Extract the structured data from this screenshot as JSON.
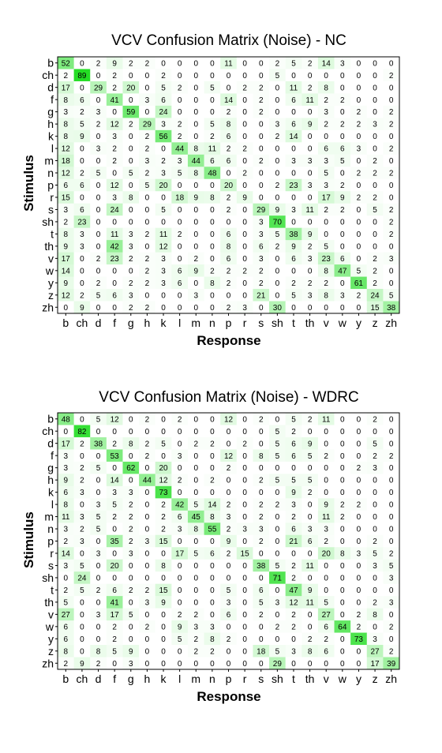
{
  "chart_data": [
    {
      "type": "heatmap",
      "title": "VCV Confusion Matrix (Noise) - NC",
      "xlabel": "Response",
      "ylabel": "Stimulus",
      "rows": [
        "b",
        "ch",
        "d",
        "f",
        "g",
        "h",
        "k",
        "l",
        "m",
        "n",
        "p",
        "r",
        "s",
        "sh",
        "t",
        "th",
        "v",
        "w",
        "y",
        "z",
        "zh"
      ],
      "columns": [
        "b",
        "ch",
        "d",
        "f",
        "g",
        "h",
        "k",
        "l",
        "m",
        "n",
        "p",
        "r",
        "s",
        "sh",
        "t",
        "th",
        "v",
        "w",
        "y",
        "z",
        "zh"
      ],
      "values": [
        [
          52,
          0,
          2,
          9,
          2,
          2,
          0,
          0,
          0,
          0,
          11,
          0,
          0,
          2,
          5,
          2,
          14,
          3,
          0,
          0,
          0
        ],
        [
          2,
          89,
          0,
          2,
          0,
          0,
          2,
          0,
          0,
          0,
          0,
          0,
          0,
          5,
          0,
          0,
          0,
          0,
          0,
          0,
          2
        ],
        [
          17,
          0,
          29,
          2,
          20,
          0,
          5,
          2,
          0,
          5,
          0,
          2,
          2,
          0,
          11,
          2,
          8,
          0,
          0,
          0,
          0
        ],
        [
          8,
          6,
          0,
          41,
          0,
          3,
          6,
          0,
          0,
          0,
          14,
          0,
          2,
          0,
          6,
          11,
          2,
          2,
          0,
          0,
          0
        ],
        [
          3,
          2,
          3,
          0,
          59,
          0,
          24,
          0,
          0,
          0,
          2,
          0,
          2,
          0,
          0,
          0,
          3,
          0,
          2,
          0,
          2
        ],
        [
          8,
          5,
          2,
          12,
          2,
          29,
          3,
          2,
          0,
          5,
          8,
          0,
          0,
          3,
          6,
          9,
          2,
          2,
          2,
          3,
          2
        ],
        [
          8,
          9,
          0,
          3,
          0,
          2,
          56,
          2,
          0,
          2,
          6,
          0,
          0,
          2,
          14,
          0,
          0,
          0,
          0,
          0,
          0
        ],
        [
          12,
          0,
          3,
          2,
          0,
          2,
          0,
          44,
          8,
          11,
          2,
          2,
          0,
          0,
          0,
          0,
          6,
          6,
          3,
          0,
          2
        ],
        [
          18,
          0,
          0,
          2,
          0,
          3,
          2,
          3,
          44,
          6,
          6,
          0,
          2,
          0,
          3,
          3,
          3,
          5,
          0,
          2,
          0
        ],
        [
          12,
          2,
          5,
          0,
          5,
          2,
          3,
          5,
          8,
          48,
          0,
          2,
          0,
          0,
          0,
          0,
          5,
          0,
          2,
          2,
          2
        ],
        [
          6,
          6,
          0,
          12,
          0,
          5,
          20,
          0,
          0,
          0,
          20,
          0,
          0,
          2,
          23,
          3,
          3,
          2,
          0,
          0,
          0
        ],
        [
          15,
          0,
          0,
          3,
          8,
          0,
          0,
          18,
          9,
          8,
          2,
          9,
          0,
          0,
          0,
          0,
          17,
          9,
          2,
          2,
          0
        ],
        [
          3,
          6,
          0,
          24,
          0,
          0,
          5,
          0,
          0,
          0,
          2,
          0,
          29,
          9,
          3,
          11,
          2,
          2,
          0,
          5,
          2
        ],
        [
          2,
          23,
          0,
          0,
          0,
          0,
          0,
          0,
          0,
          0,
          0,
          0,
          3,
          70,
          0,
          0,
          0,
          0,
          0,
          0,
          2
        ],
        [
          8,
          3,
          0,
          11,
          3,
          2,
          11,
          2,
          0,
          0,
          6,
          0,
          3,
          5,
          38,
          9,
          0,
          0,
          0,
          0,
          2
        ],
        [
          9,
          3,
          0,
          42,
          3,
          0,
          12,
          0,
          0,
          0,
          8,
          0,
          6,
          2,
          9,
          2,
          5,
          0,
          0,
          0,
          0
        ],
        [
          17,
          0,
          2,
          23,
          2,
          2,
          3,
          0,
          2,
          0,
          6,
          0,
          3,
          0,
          6,
          3,
          23,
          6,
          0,
          2,
          3
        ],
        [
          14,
          0,
          0,
          0,
          0,
          2,
          3,
          6,
          9,
          2,
          2,
          2,
          2,
          0,
          0,
          0,
          8,
          47,
          5,
          2,
          0
        ],
        [
          9,
          0,
          2,
          0,
          2,
          2,
          3,
          6,
          0,
          8,
          2,
          0,
          2,
          0,
          2,
          2,
          2,
          0,
          61,
          2,
          0
        ],
        [
          12,
          2,
          5,
          6,
          3,
          0,
          0,
          0,
          3,
          0,
          0,
          0,
          21,
          0,
          5,
          3,
          8,
          3,
          2,
          24,
          5
        ],
        [
          0,
          9,
          0,
          0,
          2,
          2,
          0,
          0,
          0,
          0,
          2,
          3,
          0,
          30,
          0,
          0,
          0,
          0,
          0,
          15,
          38
        ]
      ]
    },
    {
      "type": "heatmap",
      "title": "VCV Confusion Matrix (Noise) - WDRC",
      "xlabel": "Response",
      "ylabel": "Stimulus",
      "rows": [
        "b",
        "ch",
        "d",
        "f",
        "g",
        "h",
        "k",
        "l",
        "m",
        "n",
        "p",
        "r",
        "s",
        "sh",
        "t",
        "th",
        "v",
        "w",
        "y",
        "z",
        "zh"
      ],
      "columns": [
        "b",
        "ch",
        "d",
        "f",
        "g",
        "h",
        "k",
        "l",
        "m",
        "n",
        "p",
        "r",
        "s",
        "sh",
        "t",
        "th",
        "v",
        "w",
        "y",
        "z",
        "zh"
      ],
      "values": [
        [
          48,
          0,
          5,
          12,
          0,
          2,
          0,
          2,
          0,
          0,
          12,
          0,
          2,
          0,
          5,
          2,
          11,
          0,
          0,
          2,
          0
        ],
        [
          0,
          82,
          0,
          0,
          0,
          0,
          0,
          0,
          0,
          0,
          0,
          0,
          0,
          5,
          2,
          0,
          0,
          0,
          0,
          0,
          0
        ],
        [
          17,
          2,
          38,
          2,
          8,
          2,
          5,
          0,
          2,
          2,
          0,
          2,
          0,
          5,
          6,
          9,
          0,
          0,
          0,
          5,
          0
        ],
        [
          3,
          0,
          0,
          53,
          0,
          2,
          0,
          3,
          0,
          0,
          12,
          0,
          8,
          5,
          6,
          5,
          2,
          0,
          0,
          2,
          2
        ],
        [
          3,
          2,
          5,
          0,
          62,
          0,
          20,
          0,
          0,
          0,
          2,
          0,
          0,
          0,
          0,
          0,
          0,
          0,
          2,
          3,
          0
        ],
        [
          9,
          2,
          0,
          14,
          0,
          44,
          12,
          2,
          0,
          2,
          0,
          0,
          2,
          5,
          5,
          5,
          0,
          0,
          0,
          0,
          0
        ],
        [
          6,
          3,
          0,
          3,
          3,
          0,
          73,
          0,
          0,
          0,
          0,
          0,
          0,
          0,
          9,
          2,
          0,
          0,
          0,
          0,
          0
        ],
        [
          8,
          0,
          3,
          5,
          2,
          0,
          2,
          42,
          5,
          14,
          2,
          0,
          2,
          2,
          3,
          0,
          9,
          2,
          2,
          0,
          0
        ],
        [
          11,
          3,
          5,
          2,
          2,
          0,
          2,
          6,
          45,
          8,
          3,
          0,
          2,
          0,
          2,
          0,
          11,
          2,
          0,
          0,
          0
        ],
        [
          3,
          2,
          5,
          0,
          2,
          0,
          2,
          3,
          8,
          55,
          2,
          3,
          3,
          0,
          6,
          3,
          3,
          0,
          0,
          0,
          0
        ],
        [
          2,
          3,
          0,
          35,
          2,
          3,
          15,
          0,
          0,
          0,
          9,
          0,
          2,
          0,
          21,
          6,
          2,
          0,
          0,
          2,
          0
        ],
        [
          14,
          0,
          3,
          0,
          3,
          0,
          0,
          17,
          5,
          6,
          2,
          15,
          0,
          0,
          0,
          0,
          20,
          8,
          3,
          5,
          2
        ],
        [
          3,
          5,
          0,
          20,
          0,
          0,
          8,
          0,
          0,
          0,
          0,
          0,
          38,
          5,
          2,
          11,
          0,
          0,
          0,
          3,
          5
        ],
        [
          0,
          24,
          0,
          0,
          0,
          0,
          0,
          0,
          0,
          0,
          0,
          0,
          0,
          71,
          2,
          0,
          0,
          0,
          0,
          0,
          3
        ],
        [
          2,
          5,
          2,
          6,
          2,
          2,
          15,
          0,
          0,
          0,
          5,
          0,
          6,
          0,
          47,
          9,
          0,
          0,
          0,
          0,
          0
        ],
        [
          5,
          0,
          0,
          41,
          0,
          3,
          9,
          0,
          0,
          0,
          3,
          0,
          5,
          3,
          12,
          11,
          5,
          0,
          0,
          2,
          3
        ],
        [
          27,
          0,
          3,
          17,
          5,
          0,
          0,
          2,
          2,
          0,
          6,
          0,
          2,
          0,
          2,
          0,
          27,
          0,
          2,
          8,
          0
        ],
        [
          6,
          0,
          0,
          2,
          0,
          2,
          0,
          9,
          3,
          3,
          0,
          0,
          0,
          2,
          2,
          0,
          6,
          64,
          2,
          0,
          2
        ],
        [
          6,
          0,
          0,
          2,
          0,
          0,
          0,
          5,
          2,
          8,
          2,
          0,
          0,
          0,
          0,
          2,
          2,
          0,
          73,
          3,
          0
        ],
        [
          8,
          0,
          8,
          5,
          9,
          0,
          0,
          0,
          2,
          2,
          0,
          0,
          18,
          5,
          3,
          8,
          6,
          0,
          0,
          27,
          2
        ],
        [
          2,
          9,
          2,
          0,
          3,
          0,
          0,
          0,
          0,
          0,
          0,
          0,
          0,
          29,
          0,
          0,
          0,
          0,
          0,
          17,
          39
        ]
      ]
    }
  ],
  "colors": {
    "cell_max": "#22dd22",
    "cell_min": "#ffffff",
    "text": "#000000"
  }
}
